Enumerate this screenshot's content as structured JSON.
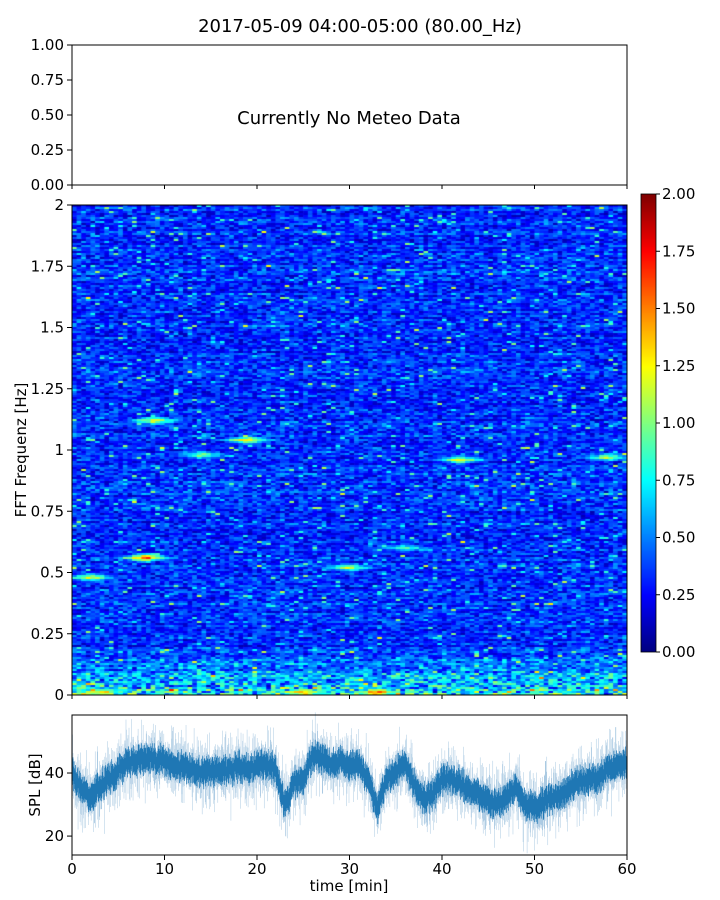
{
  "chart_data": [
    {
      "type": "table",
      "name": "meteo-panel",
      "title": "2017-05-09 04:00-05:00 (80.00_Hz)",
      "message": "Currently No Meteo Data",
      "ylim": [
        0,
        1
      ],
      "yticks": [
        "0.00",
        "0.25",
        "0.50",
        "0.75",
        "1.00"
      ]
    },
    {
      "type": "heatmap",
      "name": "spectrogram",
      "ylabel": "FFT Frequenz [Hz]",
      "xlim": [
        0,
        60
      ],
      "ylim": [
        0,
        2
      ],
      "yticks": [
        "0",
        "0.25",
        "0.5",
        "0.75",
        "1",
        "1.25",
        "1.5",
        "1.75",
        "2"
      ],
      "colorbar": {
        "range": [
          0,
          2
        ],
        "colormap": "jet",
        "ticks": [
          "0.00",
          "0.25",
          "0.50",
          "0.75",
          "1.00",
          "1.25",
          "1.50",
          "1.75",
          "2.00"
        ]
      },
      "background_level": 0.3,
      "hotspots": [
        {
          "t": 8,
          "f": 0.56,
          "v": 1.9
        },
        {
          "t": 9,
          "f": 1.12,
          "v": 1.6
        },
        {
          "t": 19,
          "f": 1.04,
          "v": 1.6
        },
        {
          "t": 14,
          "f": 0.98,
          "v": 1.3
        },
        {
          "t": 42,
          "f": 0.96,
          "v": 1.5
        },
        {
          "t": 58,
          "f": 0.97,
          "v": 1.4
        },
        {
          "t": 30,
          "f": 0.52,
          "v": 1.4
        },
        {
          "t": 36,
          "f": 0.6,
          "v": 1.1
        },
        {
          "t": 2,
          "f": 0.48,
          "v": 1.5
        },
        {
          "t": 33,
          "f": 0.01,
          "v": 2.0
        },
        {
          "t": 25,
          "f": 0.01,
          "v": 1.8
        },
        {
          "t": 3,
          "f": 0.01,
          "v": 1.8
        }
      ]
    },
    {
      "type": "line",
      "name": "spl",
      "xlabel": "time [min]",
      "ylabel": "SPL [dB]",
      "xlim": [
        0,
        60
      ],
      "ylim": [
        14,
        58.4
      ],
      "xticks": [
        "0",
        "10",
        "20",
        "30",
        "40",
        "50",
        "60"
      ],
      "yticks": [
        "20",
        "40"
      ],
      "color": "#1f77b4",
      "x": [
        0,
        1,
        2,
        3,
        4,
        5,
        6,
        7,
        8,
        9,
        10,
        11,
        12,
        13,
        14,
        15,
        16,
        17,
        18,
        19,
        20,
        21,
        22,
        23,
        24,
        25,
        26,
        27,
        28,
        29,
        30,
        31,
        32,
        33,
        34,
        35,
        36,
        37,
        38,
        39,
        40,
        41,
        42,
        43,
        44,
        45,
        46,
        47,
        48,
        49,
        50,
        51,
        52,
        53,
        54,
        55,
        56,
        57,
        58,
        59,
        60
      ],
      "y": [
        40,
        35,
        32,
        36,
        38,
        41,
        43,
        44,
        45,
        44,
        44,
        43,
        42,
        41,
        40,
        41,
        40,
        41,
        42,
        41,
        42,
        43,
        41,
        29,
        37,
        38,
        45,
        45,
        43,
        44,
        42,
        43,
        38,
        28,
        38,
        41,
        43,
        36,
        32,
        33,
        38,
        38,
        37,
        34,
        33,
        31,
        30,
        32,
        36,
        30,
        29,
        31,
        32,
        33,
        36,
        37,
        38,
        39,
        41,
        42,
        43
      ]
    }
  ]
}
